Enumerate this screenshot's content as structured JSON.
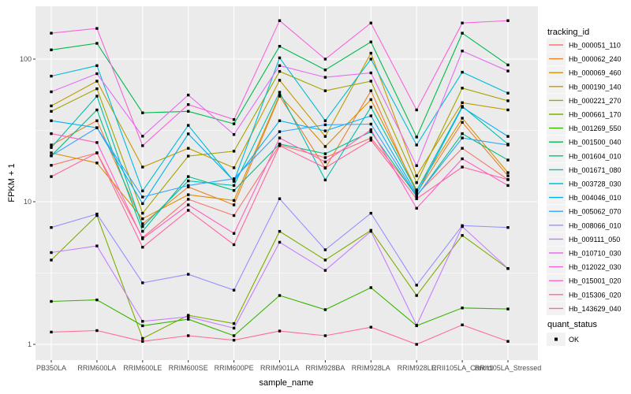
{
  "figure": {
    "panel_background": "#EBEBEB",
    "gridline_color": "#FFFFFF",
    "axis_text_color": "#4D4D4D",
    "legend_key_background": "#F2F2F2",
    "marker_color": "#000000"
  },
  "chart_data": {
    "type": "line",
    "title": "",
    "xlabel": "sample_name",
    "ylabel": "FPKM + 1",
    "y_scale": "log10",
    "y_ticks": [
      1,
      10,
      100
    ],
    "y_minor_ticks": [
      3.1623,
      31.623
    ],
    "ylim": [
      1,
      200
    ],
    "grid": true,
    "point_marker": "black-square",
    "legend_position": "right",
    "categories": [
      "PB350LA",
      "RRIM600LA",
      "RRIM600LE",
      "RRIM600SE",
      "RRIM600PE",
      "RRIM901LA",
      "RRIM928BA",
      "RRIM928LA",
      "RRIM928LE",
      "RRII105LA_Control",
      "RRII105LA_Stressed"
    ],
    "series": [
      {
        "name": "Hb_000051_110",
        "color": "#F8766D",
        "values": [
          18,
          22,
          5.6,
          10.4,
          8.0,
          25,
          20.4,
          28,
          11.2,
          23.7,
          14.3
        ]
      },
      {
        "name": "Hb_000062_240",
        "color": "#EA8331",
        "values": [
          25,
          37,
          7.0,
          12.7,
          9.5,
          55,
          17.2,
          60,
          11.5,
          36,
          15.2
        ]
      },
      {
        "name": "Hb_000069_460",
        "color": "#D89000",
        "values": [
          22,
          18.7,
          7.6,
          11.2,
          10.2,
          56,
          24.4,
          52,
          12.1,
          38.5,
          16
        ]
      },
      {
        "name": "Hb_000190_140",
        "color": "#C09B00",
        "values": [
          47,
          70,
          17.5,
          23.7,
          17.3,
          71,
          28.7,
          110,
          15.2,
          49.5,
          44
        ]
      },
      {
        "name": "Hb_000221_270",
        "color": "#A3A500",
        "values": [
          43,
          62,
          8.3,
          20.9,
          22.6,
          82,
          60,
          70,
          13.6,
          62.6,
          51
        ]
      },
      {
        "name": "Hb_000661_170",
        "color": "#7CAE00",
        "values": [
          3.9,
          8.0,
          1.1,
          1.6,
          1.4,
          6.2,
          3.9,
          6.3,
          2.2,
          5.8,
          3.4
        ]
      },
      {
        "name": "Hb_001269_550",
        "color": "#39B600",
        "values": [
          2.0,
          2.05,
          1.35,
          1.5,
          1.15,
          2.2,
          1.75,
          2.5,
          1.35,
          1.8,
          1.77
        ]
      },
      {
        "name": "Hb_001500_040",
        "color": "#00BB4E",
        "values": [
          116,
          129,
          42,
          43,
          35.2,
          123,
          84,
          132,
          28.4,
          152,
          91
        ]
      },
      {
        "name": "Hb_001604_010",
        "color": "#00C087",
        "values": [
          21,
          44,
          6.2,
          15,
          12,
          25.4,
          21.7,
          31,
          10.9,
          30,
          19.6
        ]
      },
      {
        "name": "Hb_001671_080",
        "color": "#00C0AF",
        "values": [
          24,
          55,
          6.7,
          14,
          13,
          58.5,
          14.2,
          46,
          11.9,
          46.6,
          25.3
        ]
      },
      {
        "name": "Hb_003728_030",
        "color": "#00BCD8",
        "values": [
          76,
          90,
          11.9,
          34.3,
          13.9,
          102,
          37,
          100,
          25,
          81,
          57.7
        ]
      },
      {
        "name": "Hb_004046_010",
        "color": "#00B0F6",
        "values": [
          37,
          33,
          9.7,
          29.9,
          14,
          37,
          31.4,
          40,
          11.3,
          46,
          28.7
        ]
      },
      {
        "name": "Hb_005062_070",
        "color": "#35A2FF",
        "values": [
          21,
          33,
          10.8,
          13.0,
          14.5,
          31,
          34.6,
          35,
          11.0,
          28,
          25
        ]
      },
      {
        "name": "Hb_008066_010",
        "color": "#9590FF",
        "values": [
          6.6,
          8.2,
          2.7,
          3.1,
          2.4,
          10.5,
          4.6,
          8.3,
          2.6,
          6.8,
          6.6
        ]
      },
      {
        "name": "Hb_009111_050",
        "color": "#C77CFF",
        "values": [
          4.4,
          4.9,
          1.45,
          1.56,
          1.3,
          5.2,
          3.3,
          6.2,
          1.36,
          6.7,
          3.4
        ]
      },
      {
        "name": "Hb_010710_030",
        "color": "#E76BF3",
        "values": [
          59,
          79,
          28.8,
          56,
          29.6,
          90,
          74.5,
          80,
          17.9,
          114,
          82.5
        ]
      },
      {
        "name": "Hb_012022_030",
        "color": "#FA62DB",
        "values": [
          152,
          164,
          24.7,
          48,
          37.7,
          186,
          100,
          179,
          44,
          179,
          186
        ]
      },
      {
        "name": "Hb_015001_020",
        "color": "#FF61C3",
        "values": [
          30,
          26,
          5.5,
          9.5,
          6.0,
          28,
          19,
          32,
          9.0,
          20,
          13
        ]
      },
      {
        "name": "Hb_015306_020",
        "color": "#FF67A4",
        "values": [
          15,
          22,
          4.8,
          8.7,
          5.0,
          24.7,
          17.3,
          27,
          10.5,
          17.5,
          14.3
        ]
      },
      {
        "name": "Hb_143629_040",
        "color": "#FF6C92",
        "values": [
          1.22,
          1.25,
          1.05,
          1.15,
          1.07,
          1.24,
          1.15,
          1.32,
          1.0,
          1.37,
          1.05
        ]
      }
    ],
    "legend_tracking": {
      "title": "tracking_id"
    },
    "legend_quant": {
      "title": "quant_status",
      "items": [
        {
          "label": "OK",
          "marker": "black-square"
        }
      ]
    }
  }
}
